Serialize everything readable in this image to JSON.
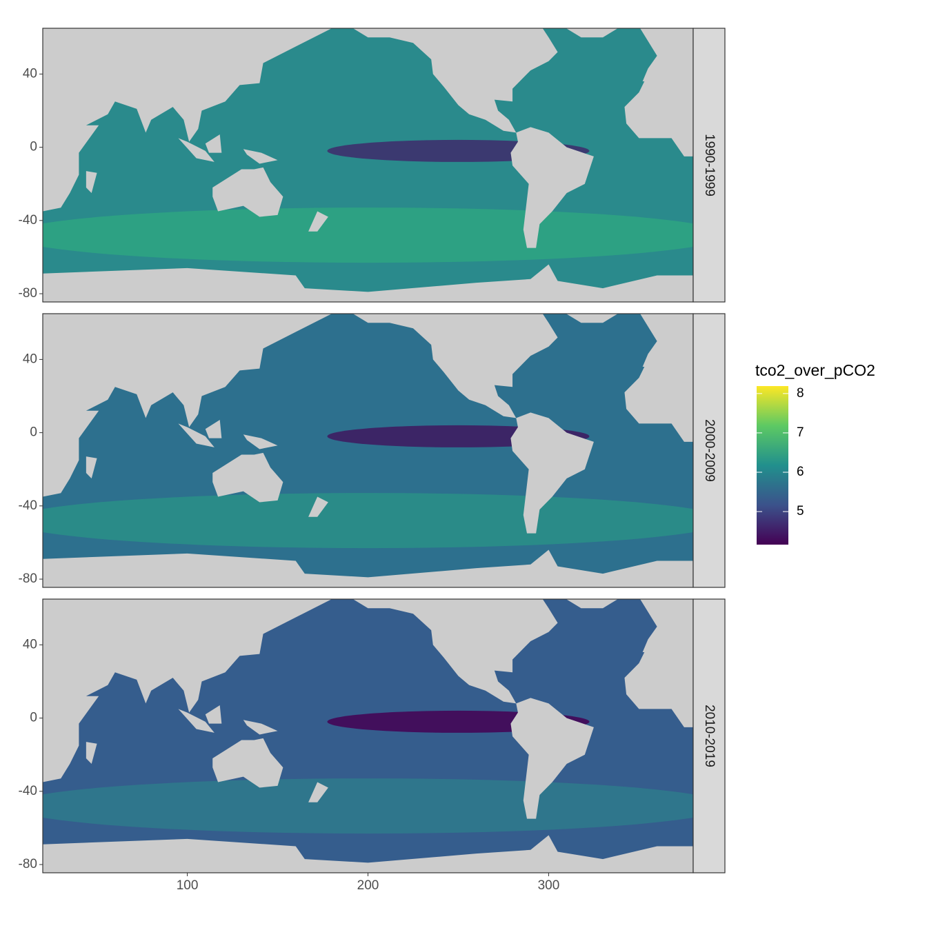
{
  "chart_data": {
    "type": "raster-map",
    "facets": [
      "1990-1999",
      "2000-2009",
      "2010-2019"
    ],
    "xlim": [
      20,
      380
    ],
    "ylim": [
      -84.5,
      65
    ],
    "xticks": [
      100,
      200,
      300
    ],
    "yticks": [
      -80,
      -40,
      0,
      40
    ],
    "legend": {
      "title": "tco2_over_pCO2",
      "limits": [
        4.16,
        8.19
      ],
      "ticks": [
        5,
        6,
        7,
        8
      ]
    }
  }
}
